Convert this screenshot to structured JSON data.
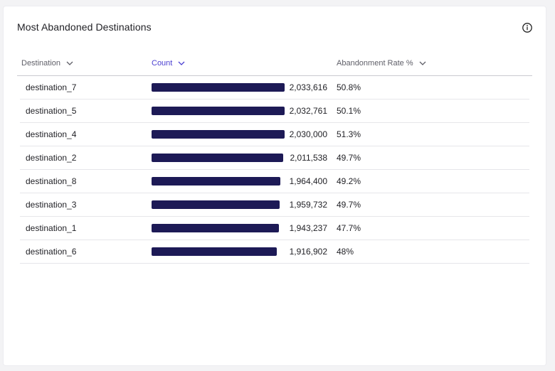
{
  "widget": {
    "title": "Most Abandoned Destinations",
    "info_icon": "info-circle-icon"
  },
  "table": {
    "columns": [
      {
        "label": "Destination",
        "sorted": false
      },
      {
        "label": "Count",
        "sorted": true
      },
      {
        "label": "Abandonment Rate %",
        "sorted": false
      }
    ],
    "bar_max": 2033616,
    "accent_color": "#4a3fd1",
    "bar_color": "#1d1a56",
    "rows": [
      {
        "destination": "destination_7",
        "count": 2033616,
        "count_label": "2,033,616",
        "rate": "50.8%"
      },
      {
        "destination": "destination_5",
        "count": 2032761,
        "count_label": "2,032,761",
        "rate": "50.1%"
      },
      {
        "destination": "destination_4",
        "count": 2030000,
        "count_label": "2,030,000",
        "rate": "51.3%"
      },
      {
        "destination": "destination_2",
        "count": 2011538,
        "count_label": "2,011,538",
        "rate": "49.7%"
      },
      {
        "destination": "destination_8",
        "count": 1964400,
        "count_label": "1,964,400",
        "rate": "49.2%"
      },
      {
        "destination": "destination_3",
        "count": 1959732,
        "count_label": "1,959,732",
        "rate": "49.7%"
      },
      {
        "destination": "destination_1",
        "count": 1943237,
        "count_label": "1,943,237",
        "rate": "47.7%"
      },
      {
        "destination": "destination_6",
        "count": 1916902,
        "count_label": "1,916,902",
        "rate": "48%"
      }
    ]
  }
}
